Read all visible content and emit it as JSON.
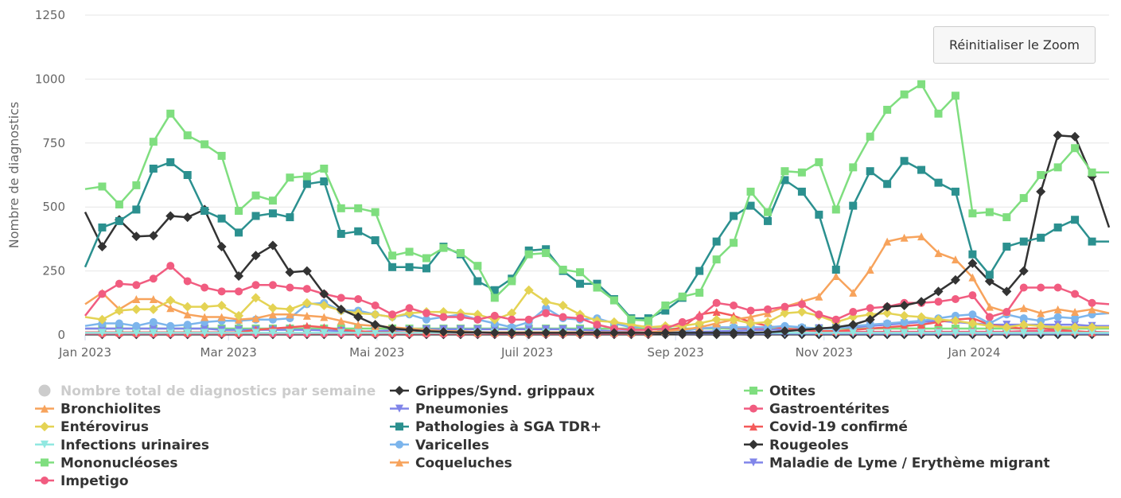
{
  "reset_zoom_label": "Réinitialiser le Zoom",
  "chart_data": {
    "type": "line",
    "title": "",
    "xlabel": "",
    "ylabel": "Nombre de diagnostics",
    "ylim": [
      0,
      1250
    ],
    "y_ticks": [
      "0",
      "250",
      "500",
      "750",
      "1000",
      "1250"
    ],
    "x_ticks": [
      {
        "label": "Jan 2023",
        "week": 0
      },
      {
        "label": "Mar 2023",
        "week": 8.4
      },
      {
        "label": "Mai 2023",
        "week": 17.1
      },
      {
        "label": "Juil 2023",
        "week": 25.9
      },
      {
        "label": "Sep 2023",
        "week": 34.6
      },
      {
        "label": "Nov 2023",
        "week": 43.3
      },
      {
        "label": "Jan 2024",
        "week": 52.1
      }
    ],
    "weeks": 61,
    "series": [
      {
        "name": "Nombre total de diagnostics par semaine",
        "color": "#cccccc",
        "marker": "circle",
        "hidden": true,
        "values": []
      },
      {
        "name": "Grippes/Synd. grippaux",
        "color": "#333333",
        "marker": "diamond",
        "hidden": false,
        "values": [
          480,
          345,
          450,
          385,
          388,
          465,
          460,
          490,
          345,
          230,
          310,
          350,
          245,
          250,
          160,
          100,
          70,
          40,
          25,
          20,
          15,
          12,
          10,
          10,
          8,
          8,
          8,
          8,
          8,
          8,
          8,
          8,
          8,
          8,
          8,
          8,
          8,
          8,
          8,
          8,
          10,
          15,
          20,
          25,
          30,
          40,
          60,
          110,
          115,
          130,
          170,
          215,
          280,
          210,
          170,
          250,
          560,
          780,
          775,
          620,
          420
        ]
      },
      {
        "name": "Otites",
        "color": "#7fde7f",
        "marker": "square",
        "hidden": false,
        "values": [
          570,
          580,
          510,
          585,
          755,
          865,
          780,
          745,
          700,
          485,
          545,
          525,
          615,
          620,
          650,
          495,
          495,
          480,
          310,
          325,
          300,
          340,
          320,
          270,
          145,
          210,
          315,
          320,
          255,
          245,
          185,
          135,
          60,
          55,
          115,
          150,
          165,
          295,
          360,
          560,
          480,
          640,
          635,
          675,
          490,
          655,
          775,
          880,
          940,
          980,
          865,
          935,
          475,
          480,
          460,
          535,
          625,
          655,
          730,
          635,
          635
        ]
      },
      {
        "name": "Bronchiolites",
        "color": "#f7a35c",
        "marker": "triangle",
        "hidden": false,
        "values": [
          120,
          165,
          100,
          140,
          140,
          105,
          80,
          70,
          70,
          60,
          65,
          80,
          80,
          75,
          70,
          55,
          40,
          35,
          30,
          25,
          20,
          15,
          15,
          10,
          10,
          10,
          10,
          10,
          10,
          10,
          10,
          10,
          10,
          10,
          15,
          20,
          30,
          45,
          60,
          70,
          85,
          110,
          130,
          150,
          230,
          165,
          255,
          365,
          380,
          385,
          320,
          295,
          225,
          110,
          90,
          105,
          85,
          100,
          90,
          100,
          85
        ]
      },
      {
        "name": "Pneumonies",
        "color": "#8085e9",
        "marker": "triangle-down",
        "hidden": false,
        "values": [
          25,
          25,
          25,
          25,
          25,
          25,
          25,
          25,
          20,
          20,
          20,
          20,
          20,
          20,
          18,
          16,
          14,
          12,
          10,
          10,
          10,
          10,
          10,
          10,
          10,
          10,
          10,
          10,
          10,
          10,
          10,
          10,
          10,
          10,
          10,
          10,
          12,
          14,
          16,
          18,
          20,
          22,
          24,
          26,
          28,
          30,
          35,
          40,
          45,
          50,
          55,
          50,
          45,
          40,
          40,
          40,
          40,
          40,
          40,
          35,
          35
        ]
      },
      {
        "name": "Gastroentérites",
        "color": "#f15c80",
        "marker": "circle",
        "hidden": false,
        "values": [
          75,
          160,
          200,
          195,
          220,
          270,
          210,
          185,
          170,
          170,
          195,
          195,
          185,
          180,
          160,
          145,
          140,
          115,
          80,
          105,
          85,
          70,
          70,
          60,
          75,
          60,
          60,
          85,
          70,
          65,
          40,
          25,
          20,
          20,
          25,
          50,
          70,
          125,
          115,
          95,
          100,
          110,
          120,
          80,
          60,
          90,
          105,
          110,
          125,
          125,
          130,
          140,
          155,
          70,
          90,
          185,
          185,
          185,
          160,
          125,
          120
        ]
      },
      {
        "name": "Entérovirus",
        "color": "#e4d354",
        "marker": "diamond",
        "hidden": false,
        "values": [
          70,
          60,
          95,
          100,
          100,
          135,
          110,
          110,
          115,
          75,
          145,
          105,
          100,
          125,
          115,
          95,
          85,
          80,
          70,
          85,
          90,
          90,
          85,
          80,
          60,
          85,
          175,
          130,
          115,
          80,
          55,
          50,
          40,
          30,
          35,
          35,
          45,
          60,
          60,
          45,
          50,
          85,
          90,
          75,
          50,
          70,
          80,
          85,
          75,
          70,
          60,
          55,
          45,
          35,
          30,
          40,
          35,
          30,
          30,
          30,
          30
        ]
      },
      {
        "name": "Pathologies à SGA TDR+",
        "color": "#2b908f",
        "marker": "square",
        "hidden": false,
        "values": [
          265,
          420,
          445,
          490,
          650,
          675,
          625,
          485,
          455,
          400,
          465,
          475,
          460,
          590,
          600,
          395,
          405,
          370,
          265,
          265,
          260,
          345,
          315,
          210,
          175,
          220,
          330,
          335,
          250,
          200,
          200,
          140,
          65,
          65,
          95,
          145,
          250,
          365,
          465,
          505,
          445,
          605,
          560,
          470,
          255,
          505,
          640,
          590,
          680,
          645,
          595,
          560,
          315,
          235,
          345,
          365,
          380,
          420,
          450,
          365,
          365
        ]
      },
      {
        "name": "Covid-19 confirmé",
        "color": "#f45b5b",
        "marker": "triangle",
        "hidden": false,
        "values": [
          10,
          10,
          10,
          10,
          10,
          10,
          10,
          10,
          10,
          10,
          20,
          25,
          30,
          35,
          30,
          20,
          15,
          10,
          10,
          10,
          10,
          10,
          10,
          10,
          10,
          10,
          10,
          10,
          10,
          10,
          10,
          10,
          10,
          10,
          15,
          30,
          80,
          90,
          75,
          50,
          35,
          25,
          20,
          15,
          15,
          20,
          25,
          30,
          35,
          40,
          50,
          60,
          65,
          40,
          30,
          25,
          25,
          20,
          15,
          10,
          10
        ]
      },
      {
        "name": "Infections urinaires",
        "color": "#91e8e1",
        "marker": "triangle-down",
        "hidden": false,
        "values": [
          8,
          8,
          8,
          8,
          8,
          8,
          8,
          8,
          8,
          8,
          8,
          8,
          8,
          8,
          8,
          8,
          8,
          8,
          8,
          8,
          8,
          8,
          8,
          8,
          8,
          8,
          8,
          8,
          8,
          8,
          8,
          8,
          8,
          8,
          8,
          8,
          8,
          8,
          8,
          8,
          8,
          8,
          8,
          8,
          8,
          8,
          8,
          8,
          8,
          8,
          8,
          8,
          8,
          8,
          8,
          8,
          8,
          8,
          8,
          8,
          8
        ]
      },
      {
        "name": "Varicelles",
        "color": "#7cb5ec",
        "marker": "circle",
        "hidden": false,
        "values": [
          35,
          45,
          45,
          35,
          50,
          35,
          40,
          50,
          55,
          55,
          60,
          60,
          65,
          120,
          125,
          95,
          95,
          80,
          70,
          80,
          60,
          70,
          80,
          60,
          45,
          30,
          50,
          105,
          65,
          60,
          65,
          45,
          30,
          35,
          10,
          15,
          25,
          30,
          30,
          30,
          30,
          35,
          30,
          25,
          25,
          35,
          40,
          45,
          50,
          55,
          65,
          75,
          80,
          45,
          80,
          65,
          55,
          70,
          65,
          80,
          85
        ]
      },
      {
        "name": "Rougeoles",
        "color": "#333333",
        "marker": "diamond",
        "hidden": false,
        "values": [
          2,
          2,
          2,
          2,
          2,
          2,
          2,
          2,
          2,
          2,
          2,
          2,
          2,
          2,
          2,
          2,
          2,
          2,
          2,
          2,
          2,
          2,
          2,
          2,
          2,
          2,
          2,
          2,
          2,
          2,
          2,
          2,
          2,
          2,
          2,
          2,
          2,
          2,
          2,
          2,
          2,
          2,
          2,
          2,
          2,
          2,
          2,
          2,
          2,
          2,
          2,
          2,
          2,
          2,
          2,
          2,
          2,
          2,
          2,
          2,
          2
        ]
      },
      {
        "name": "Mononucléoses",
        "color": "#7fde7f",
        "marker": "square",
        "hidden": false,
        "values": [
          25,
          25,
          25,
          25,
          25,
          25,
          25,
          25,
          25,
          25,
          25,
          25,
          25,
          25,
          25,
          25,
          25,
          25,
          25,
          25,
          25,
          25,
          25,
          25,
          25,
          25,
          25,
          25,
          25,
          25,
          25,
          25,
          25,
          25,
          25,
          25,
          25,
          25,
          25,
          25,
          25,
          25,
          25,
          25,
          25,
          25,
          25,
          25,
          25,
          25,
          25,
          25,
          25,
          25,
          25,
          25,
          25,
          25,
          25,
          25,
          25
        ]
      },
      {
        "name": "Coqueluches",
        "color": "#f7a35c",
        "marker": "triangle",
        "hidden": false,
        "values": [
          2,
          2,
          2,
          2,
          2,
          2,
          2,
          2,
          2,
          2,
          2,
          2,
          2,
          2,
          2,
          2,
          2,
          2,
          2,
          2,
          2,
          2,
          2,
          2,
          2,
          2,
          2,
          2,
          2,
          2,
          2,
          2,
          2,
          2,
          2,
          2,
          2,
          2,
          2,
          2,
          2,
          2,
          2,
          2,
          2,
          2,
          2,
          2,
          2,
          2,
          2,
          2,
          2,
          2,
          2,
          2,
          2,
          2,
          2,
          2,
          2
        ]
      },
      {
        "name": "Maladie de Lyme / Erythème migrant",
        "color": "#8085e9",
        "marker": "triangle-down",
        "hidden": false,
        "values": [
          5,
          5,
          5,
          5,
          5,
          5,
          5,
          5,
          5,
          5,
          5,
          5,
          5,
          5,
          8,
          10,
          12,
          15,
          18,
          20,
          22,
          22,
          22,
          22,
          22,
          22,
          22,
          22,
          22,
          20,
          18,
          15,
          12,
          10,
          8,
          6,
          5,
          5,
          5,
          5,
          5,
          5,
          5,
          5,
          5,
          5,
          5,
          5,
          5,
          5,
          5,
          5,
          5,
          5,
          5,
          5,
          5,
          5,
          5,
          5,
          5
        ]
      },
      {
        "name": "Impetigo",
        "color": "#f15c80",
        "marker": "circle",
        "hidden": false,
        "values": [
          5,
          5,
          5,
          5,
          5,
          5,
          5,
          5,
          5,
          5,
          5,
          5,
          5,
          5,
          5,
          5,
          5,
          5,
          5,
          5,
          5,
          5,
          5,
          5,
          5,
          5,
          5,
          5,
          5,
          5,
          5,
          5,
          5,
          5,
          10,
          20,
          25,
          30,
          28,
          25,
          22,
          20,
          18,
          15,
          12,
          12,
          12,
          12,
          12,
          12,
          12,
          12,
          12,
          12,
          12,
          15,
          15,
          15,
          12,
          12,
          10
        ]
      }
    ]
  }
}
